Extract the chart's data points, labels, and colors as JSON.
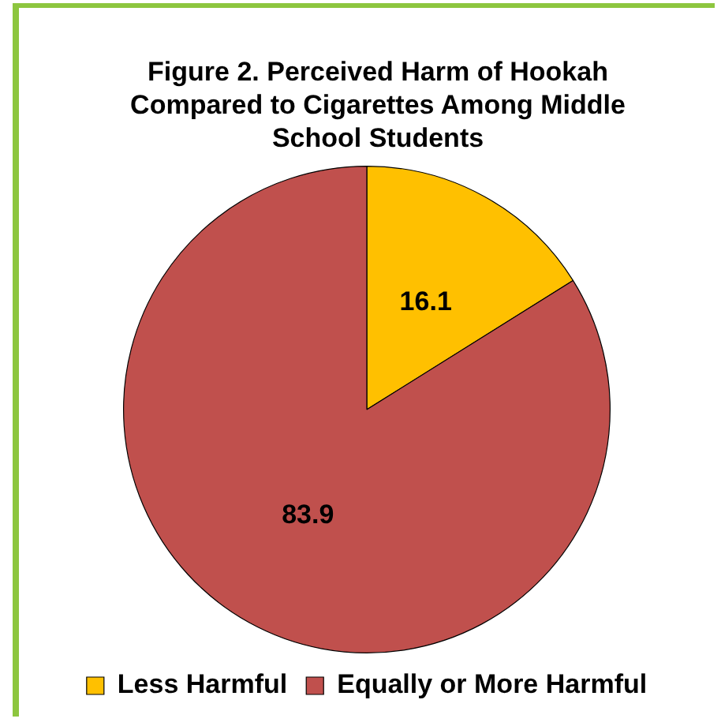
{
  "chart_data": {
    "type": "pie",
    "title": "Figure 2. Perceived Harm of Hookah Compared to Cigarettes Among Middle School Students",
    "categories": [
      "Less Harmful",
      "Equally or More Harmful"
    ],
    "values": [
      16.1,
      83.9
    ],
    "colors": [
      "#ffc000",
      "#c0504d"
    ],
    "data_labels": true,
    "legend": "bottom"
  }
}
